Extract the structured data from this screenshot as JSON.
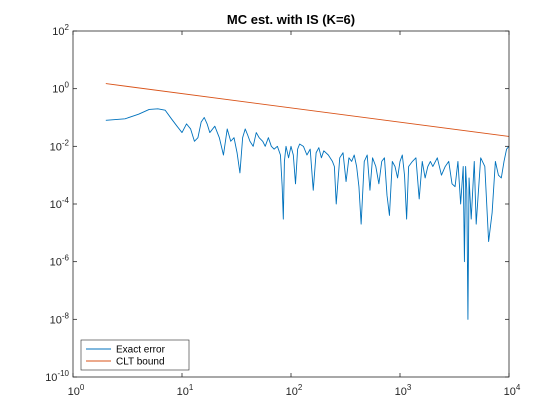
{
  "chart_data": {
    "type": "line",
    "title": "MC est. with IS (K=6)",
    "xlabel": "",
    "ylabel": "",
    "xscale": "log",
    "yscale": "log",
    "xlim": [
      1,
      10000
    ],
    "ylim": [
      1e-10,
      100
    ],
    "x_ticks": [
      {
        "base": "10",
        "exp": "0",
        "value": 1
      },
      {
        "base": "10",
        "exp": "1",
        "value": 10
      },
      {
        "base": "10",
        "exp": "2",
        "value": 100
      },
      {
        "base": "10",
        "exp": "3",
        "value": 1000
      },
      {
        "base": "10",
        "exp": "4",
        "value": 10000
      }
    ],
    "y_ticks": [
      {
        "base": "10",
        "exp": "2",
        "value": 100
      },
      {
        "base": "10",
        "exp": "0",
        "value": 1
      },
      {
        "base": "10",
        "exp": "-2",
        "value": 0.01
      },
      {
        "base": "10",
        "exp": "-4",
        "value": 0.0001
      },
      {
        "base": "10",
        "exp": "-6",
        "value": 1e-06
      },
      {
        "base": "10",
        "exp": "-8",
        "value": 1e-08
      },
      {
        "base": "10",
        "exp": "-10",
        "value": 1e-10
      }
    ],
    "grid": false,
    "legend": {
      "location": "bottom-left"
    },
    "series": [
      {
        "name": "Exact error",
        "color": "#0072BD",
        "x": [
          2,
          3,
          4,
          5,
          6,
          7,
          8,
          9,
          10,
          11,
          12,
          13,
          14,
          15,
          16,
          17,
          18,
          20,
          22,
          24,
          26,
          28,
          30,
          32,
          34,
          36,
          38,
          40,
          42,
          45,
          48,
          51,
          55,
          58,
          62,
          66,
          70,
          75,
          80,
          83,
          85,
          87,
          90,
          95,
          100,
          105,
          110,
          115,
          120,
          130,
          140,
          150,
          160,
          170,
          180,
          190,
          200,
          220,
          240,
          250,
          260,
          280,
          300,
          320,
          340,
          360,
          380,
          400,
          420,
          440,
          470,
          500,
          530,
          560,
          600,
          640,
          680,
          720,
          760,
          800,
          850,
          900,
          950,
          1000,
          1050,
          1100,
          1150,
          1200,
          1300,
          1400,
          1500,
          1600,
          1700,
          1800,
          1900,
          2000,
          2200,
          2400,
          2600,
          2800,
          3000,
          3200,
          3400,
          3600,
          3800,
          3900,
          4000,
          4100,
          4200,
          4300,
          4500,
          4800,
          5000,
          5500,
          6000,
          6500,
          7000,
          7500,
          8000,
          8500,
          9000,
          9500,
          10000
        ],
        "y": [
          0.08,
          0.09,
          0.13,
          0.19,
          0.2,
          0.18,
          0.09,
          0.05,
          0.03,
          0.06,
          0.04,
          0.015,
          0.02,
          0.07,
          0.1,
          0.06,
          0.03,
          0.05,
          0.02,
          0.005,
          0.04,
          0.015,
          0.02,
          0.006,
          0.0012,
          0.02,
          0.04,
          0.025,
          0.015,
          0.01,
          0.03,
          0.02,
          0.015,
          0.01,
          0.02,
          0.01,
          0.008,
          0.01,
          0.005,
          0.0004,
          3e-05,
          0.003,
          0.01,
          0.004,
          0.01,
          0.005,
          0.0005,
          0.008,
          0.012,
          0.01,
          0.005,
          0.008,
          0.0003,
          0.006,
          0.009,
          0.004,
          0.007,
          0.005,
          0.003,
          0.002,
          0.0001,
          0.004,
          0.006,
          0.0006,
          0.004,
          0.003,
          0.005,
          0.002,
          0.0004,
          2e-05,
          0.003,
          0.005,
          0.0003,
          0.004,
          0.002,
          0.0005,
          0.003,
          0.004,
          0.0002,
          4e-05,
          0.003,
          0.002,
          0.0008,
          0.003,
          0.005,
          0.001,
          3e-05,
          0.002,
          0.003,
          0.004,
          0.00015,
          0.003,
          0.0008,
          0.002,
          0.003,
          0.002,
          0.004,
          0.001,
          0.002,
          0.003,
          0.0005,
          0.0004,
          0.003,
          0.0001,
          0.002,
          1e-06,
          0.002,
          0.0003,
          1e-08,
          0.0008,
          3e-05,
          0.003,
          2e-05,
          0.004,
          0.002,
          5e-06,
          5e-05,
          0.003,
          0.001,
          0.0008,
          0.003,
          0.008,
          0.01
        ]
      },
      {
        "name": "CLT bound",
        "color": "#D95319",
        "x": [
          2,
          10000
        ],
        "y": [
          1.5,
          0.022
        ]
      }
    ]
  }
}
